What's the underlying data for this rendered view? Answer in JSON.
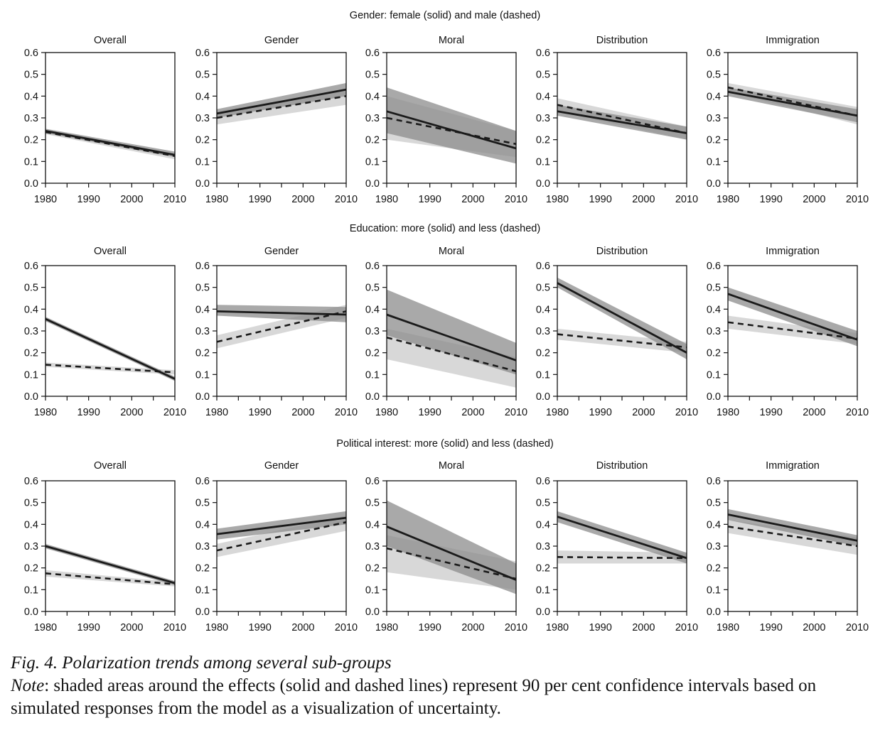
{
  "colors": {
    "line": "#1a1a1a",
    "band_solid": "#8c8c8c",
    "band_dashed": "#c8c8c8",
    "axis": "#111111"
  },
  "caption": {
    "figure": "Fig. 4.  Polarization trends among several sub-groups",
    "note_label": "Note",
    "note_text": ": shaded areas around the effects (solid and dashed lines) represent 90 per cent confidence intervals based on simulated responses from the model as a visualization of uncertainty."
  },
  "chart_data": [
    {
      "group_title": "Gender: female (solid) and male (dashed)",
      "type": "line",
      "xlim": [
        1980,
        2010
      ],
      "ylim": [
        0.0,
        0.6
      ],
      "xticks": [
        "1980",
        "1990",
        "2000",
        "2010"
      ],
      "yticks": [
        "0.0",
        "0.1",
        "0.2",
        "0.3",
        "0.4",
        "0.5",
        "0.6"
      ],
      "panels": [
        {
          "title": "Overall",
          "solid": {
            "start": 0.24,
            "end": 0.13,
            "ci_start": [
              0.23,
              0.25
            ],
            "ci_end": [
              0.12,
              0.145
            ]
          },
          "dashed": {
            "start": 0.235,
            "end": 0.125,
            "ci_start": [
              0.225,
              0.245
            ],
            "ci_end": [
              0.11,
              0.135
            ]
          }
        },
        {
          "title": "Gender",
          "solid": {
            "start": 0.32,
            "end": 0.43,
            "ci_start": [
              0.3,
              0.34
            ],
            "ci_end": [
              0.4,
              0.46
            ]
          },
          "dashed": {
            "start": 0.3,
            "end": 0.4,
            "ci_start": [
              0.27,
              0.33
            ],
            "ci_end": [
              0.36,
              0.43
            ]
          }
        },
        {
          "title": "Moral",
          "solid": {
            "start": 0.33,
            "end": 0.16,
            "ci_start": [
              0.23,
              0.44
            ],
            "ci_end": [
              0.09,
              0.24
            ]
          },
          "dashed": {
            "start": 0.3,
            "end": 0.18,
            "ci_start": [
              0.2,
              0.4
            ],
            "ci_end": [
              0.12,
              0.24
            ]
          }
        },
        {
          "title": "Distribution",
          "solid": {
            "start": 0.33,
            "end": 0.23,
            "ci_start": [
              0.31,
              0.36
            ],
            "ci_end": [
              0.2,
              0.26
            ]
          },
          "dashed": {
            "start": 0.36,
            "end": 0.23,
            "ci_start": [
              0.33,
              0.39
            ],
            "ci_end": [
              0.2,
              0.26
            ]
          }
        },
        {
          "title": "Immigration",
          "solid": {
            "start": 0.42,
            "end": 0.31,
            "ci_start": [
              0.4,
              0.44
            ],
            "ci_end": [
              0.28,
              0.34
            ]
          },
          "dashed": {
            "start": 0.44,
            "end": 0.31,
            "ci_start": [
              0.42,
              0.46
            ],
            "ci_end": [
              0.27,
              0.35
            ]
          }
        }
      ]
    },
    {
      "group_title": "Education: more (solid) and less (dashed)",
      "type": "line",
      "xlim": [
        1980,
        2010
      ],
      "ylim": [
        0.0,
        0.6
      ],
      "xticks": [
        "1980",
        "1990",
        "2000",
        "2010"
      ],
      "yticks": [
        "0.0",
        "0.1",
        "0.2",
        "0.3",
        "0.4",
        "0.5",
        "0.6"
      ],
      "panels": [
        {
          "title": "Overall",
          "solid": {
            "start": 0.355,
            "end": 0.08,
            "ci_start": [
              0.345,
              0.365
            ],
            "ci_end": [
              0.07,
              0.09
            ]
          },
          "dashed": {
            "start": 0.145,
            "end": 0.11,
            "ci_start": [
              0.135,
              0.155
            ],
            "ci_end": [
              0.1,
              0.12
            ]
          }
        },
        {
          "title": "Gender",
          "solid": {
            "start": 0.39,
            "end": 0.375,
            "ci_start": [
              0.37,
              0.42
            ],
            "ci_end": [
              0.34,
              0.41
            ]
          },
          "dashed": {
            "start": 0.25,
            "end": 0.39,
            "ci_start": [
              0.22,
              0.28
            ],
            "ci_end": [
              0.36,
              0.42
            ]
          }
        },
        {
          "title": "Moral",
          "solid": {
            "start": 0.375,
            "end": 0.165,
            "ci_start": [
              0.28,
              0.49
            ],
            "ci_end": [
              0.1,
              0.245
            ]
          },
          "dashed": {
            "start": 0.27,
            "end": 0.115,
            "ci_start": [
              0.17,
              0.31
            ],
            "ci_end": [
              0.04,
              0.18
            ]
          }
        },
        {
          "title": "Distribution",
          "solid": {
            "start": 0.52,
            "end": 0.2,
            "ci_start": [
              0.5,
              0.545
            ],
            "ci_end": [
              0.17,
              0.24
            ]
          },
          "dashed": {
            "start": 0.285,
            "end": 0.225,
            "ci_start": [
              0.26,
              0.31
            ],
            "ci_end": [
              0.2,
              0.25
            ]
          }
        },
        {
          "title": "Immigration",
          "solid": {
            "start": 0.47,
            "end": 0.26,
            "ci_start": [
              0.44,
              0.5
            ],
            "ci_end": [
              0.23,
              0.3
            ]
          },
          "dashed": {
            "start": 0.34,
            "end": 0.265,
            "ci_start": [
              0.31,
              0.37
            ],
            "ci_end": [
              0.24,
              0.29
            ]
          }
        }
      ]
    },
    {
      "group_title": "Political interest: more (solid) and less (dashed)",
      "type": "line",
      "xlim": [
        1980,
        2010
      ],
      "ylim": [
        0.0,
        0.6
      ],
      "xticks": [
        "1980",
        "1990",
        "2000",
        "2010"
      ],
      "yticks": [
        "0.0",
        "0.1",
        "0.2",
        "0.3",
        "0.4",
        "0.5",
        "0.6"
      ],
      "panels": [
        {
          "title": "Overall",
          "solid": {
            "start": 0.3,
            "end": 0.13,
            "ci_start": [
              0.29,
              0.31
            ],
            "ci_end": [
              0.12,
              0.14
            ]
          },
          "dashed": {
            "start": 0.175,
            "end": 0.125,
            "ci_start": [
              0.16,
              0.19
            ],
            "ci_end": [
              0.115,
              0.135
            ]
          }
        },
        {
          "title": "Gender",
          "solid": {
            "start": 0.355,
            "end": 0.43,
            "ci_start": [
              0.33,
              0.38
            ],
            "ci_end": [
              0.4,
              0.46
            ]
          },
          "dashed": {
            "start": 0.28,
            "end": 0.41,
            "ci_start": [
              0.25,
              0.31
            ],
            "ci_end": [
              0.37,
              0.44
            ]
          }
        },
        {
          "title": "Moral",
          "solid": {
            "start": 0.39,
            "end": 0.145,
            "ci_start": [
              0.3,
              0.51
            ],
            "ci_end": [
              0.08,
              0.22
            ]
          },
          "dashed": {
            "start": 0.29,
            "end": 0.15,
            "ci_start": [
              0.18,
              0.35
            ],
            "ci_end": [
              0.1,
              0.23
            ]
          }
        },
        {
          "title": "Distribution",
          "solid": {
            "start": 0.435,
            "end": 0.245,
            "ci_start": [
              0.41,
              0.46
            ],
            "ci_end": [
              0.22,
              0.27
            ]
          },
          "dashed": {
            "start": 0.25,
            "end": 0.245,
            "ci_start": [
              0.22,
              0.28
            ],
            "ci_end": [
              0.22,
              0.27
            ]
          }
        },
        {
          "title": "Immigration",
          "solid": {
            "start": 0.445,
            "end": 0.325,
            "ci_start": [
              0.42,
              0.47
            ],
            "ci_end": [
              0.3,
              0.35
            ]
          },
          "dashed": {
            "start": 0.39,
            "end": 0.3,
            "ci_start": [
              0.36,
              0.42
            ],
            "ci_end": [
              0.26,
              0.34
            ]
          }
        }
      ]
    }
  ]
}
